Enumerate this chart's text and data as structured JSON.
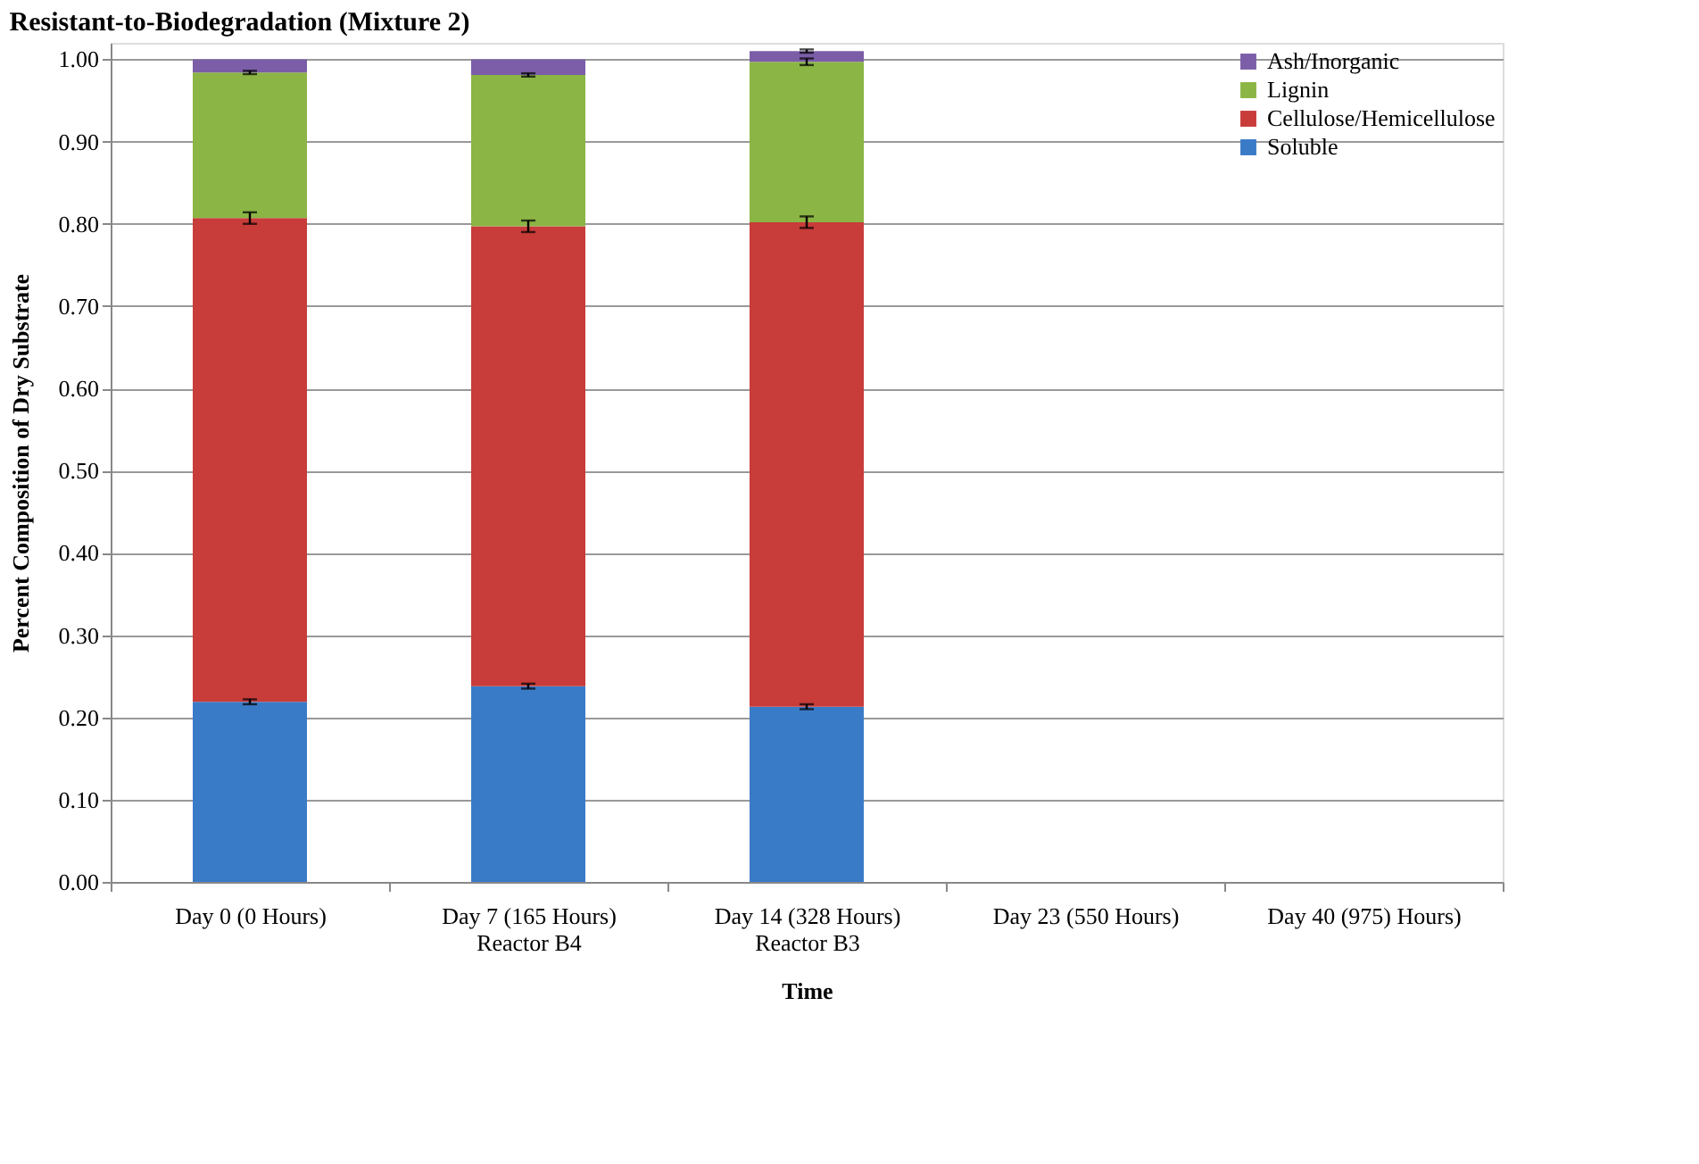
{
  "chart_data": {
    "type": "bar",
    "title": "Resistant-to-Biodegradation (Mixture 2)",
    "xlabel": "Time",
    "ylabel": "Percent Composition of Dry Substrate",
    "categories": [
      "Day 0 (0 Hours)",
      "Day 7 (165 Hours)\nReactor B4",
      "Day 14 (328 Hours)\nReactor B3",
      "Day 23 (550 Hours)",
      "Day 40 (975) Hours)"
    ],
    "stacked": true,
    "grid": "y",
    "legend": "top right",
    "ylim": [
      0,
      1.02
    ],
    "yticks": [
      {
        "value": 0,
        "label": "0.00"
      },
      {
        "value": 0.1,
        "label": "0.10"
      },
      {
        "value": 0.2,
        "label": "0.20"
      },
      {
        "value": 0.3,
        "label": "0.30"
      },
      {
        "value": 0.4,
        "label": "0.40"
      },
      {
        "value": 0.5,
        "label": "0.50"
      },
      {
        "value": 0.6,
        "label": "0.60"
      },
      {
        "value": 0.7,
        "label": "0.70"
      },
      {
        "value": 0.8,
        "label": "0.80"
      },
      {
        "value": 0.9,
        "label": "0.90"
      },
      {
        "value": 1.0,
        "label": "1.00"
      }
    ],
    "series": [
      {
        "name": "Soluble",
        "color": "#3a7bc8",
        "values": [
          0.219,
          0.238,
          0.213,
          null,
          null
        ],
        "errors": [
          0.003,
          0.003,
          0.003,
          null,
          null
        ]
      },
      {
        "name": "Cellulose/Hemicellulose",
        "color": "#c83c3a",
        "values": [
          0.588,
          0.559,
          0.589,
          null,
          null
        ],
        "errors": [
          0.007,
          0.007,
          0.007,
          null,
          null
        ]
      },
      {
        "name": "Lignin",
        "color": "#8bb545",
        "values": [
          0.177,
          0.184,
          0.195,
          null,
          null
        ],
        "errors": [
          0.002,
          0.002,
          0.004,
          null,
          null
        ]
      },
      {
        "name": "Ash/Inorganic",
        "color": "#7b5ea7",
        "values": [
          0.016,
          0.019,
          0.013,
          null,
          null
        ],
        "errors": [
          null,
          null,
          0.002,
          null,
          null
        ]
      }
    ]
  }
}
